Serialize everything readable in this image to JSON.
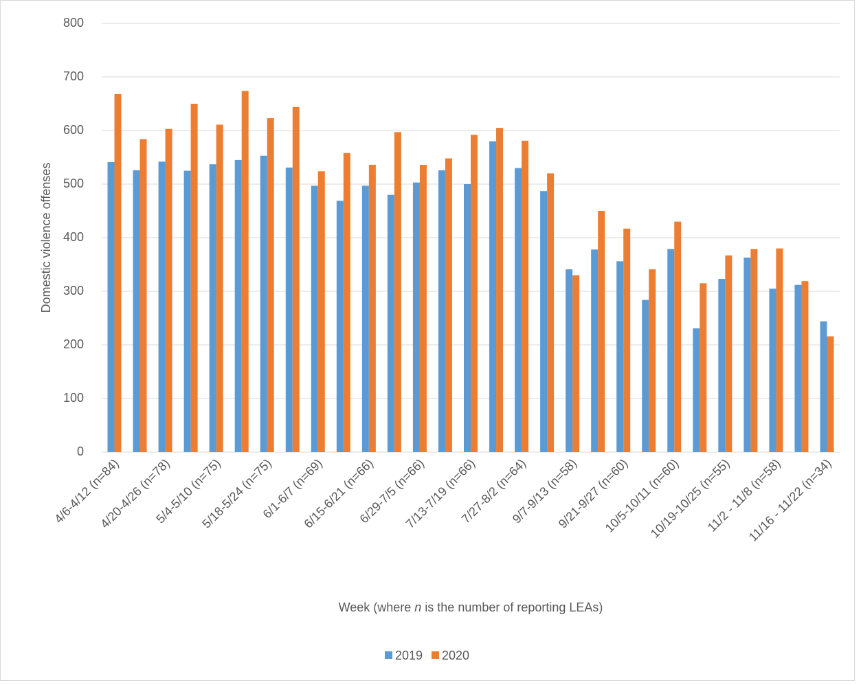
{
  "chart_data": {
    "type": "bar",
    "y_label": "Domestic violence offenses",
    "x_label": [
      "Week (where ",
      "n",
      " is the number of reporting LEAs)"
    ],
    "categories": [
      "4/6-4/12 (n=84)",
      null,
      "4/20-4/26 (n=78)",
      null,
      "5/4-5/10 (n=75)",
      null,
      "5/18-5/24 (n=75)",
      null,
      "6/1-6/7 (n=69)",
      null,
      "6/15-6/21 (n=66)",
      null,
      "6/29-7/5 (n=66)",
      null,
      "7/13-7/19 (n=66)",
      null,
      "7/27-8/2 (n=64)",
      null,
      "9/7-9/13 (n=58)",
      null,
      "9/21-9/27 (n=60)",
      null,
      "10/5-10/11 (n=60)",
      null,
      "10/19-10/25 (n=55)",
      null,
      "11/2 - 11/8 (n=58)",
      null,
      "11/16 - 11/22 (n=34)"
    ],
    "series": [
      {
        "name": "2019",
        "color": "#5b9bd5",
        "values": [
          541,
          526,
          542,
          525,
          537,
          545,
          553,
          531,
          497,
          469,
          497,
          480,
          503,
          526,
          500,
          580,
          530,
          487,
          341,
          378,
          356,
          284,
          379,
          231,
          323,
          363,
          305,
          312,
          244
        ]
      },
      {
        "name": "2020",
        "color": "#ed7d31",
        "values": [
          668,
          584,
          603,
          650,
          611,
          674,
          623,
          644,
          524,
          558,
          536,
          597,
          536,
          548,
          592,
          605,
          581,
          520,
          330,
          450,
          417,
          341,
          430,
          315,
          367,
          379,
          380,
          319,
          216
        ]
      }
    ],
    "ylim": [
      0,
      800
    ],
    "yticks": [
      0,
      100,
      200,
      300,
      400,
      500,
      600,
      700,
      800
    ],
    "grid": true,
    "legend": "bottom"
  }
}
